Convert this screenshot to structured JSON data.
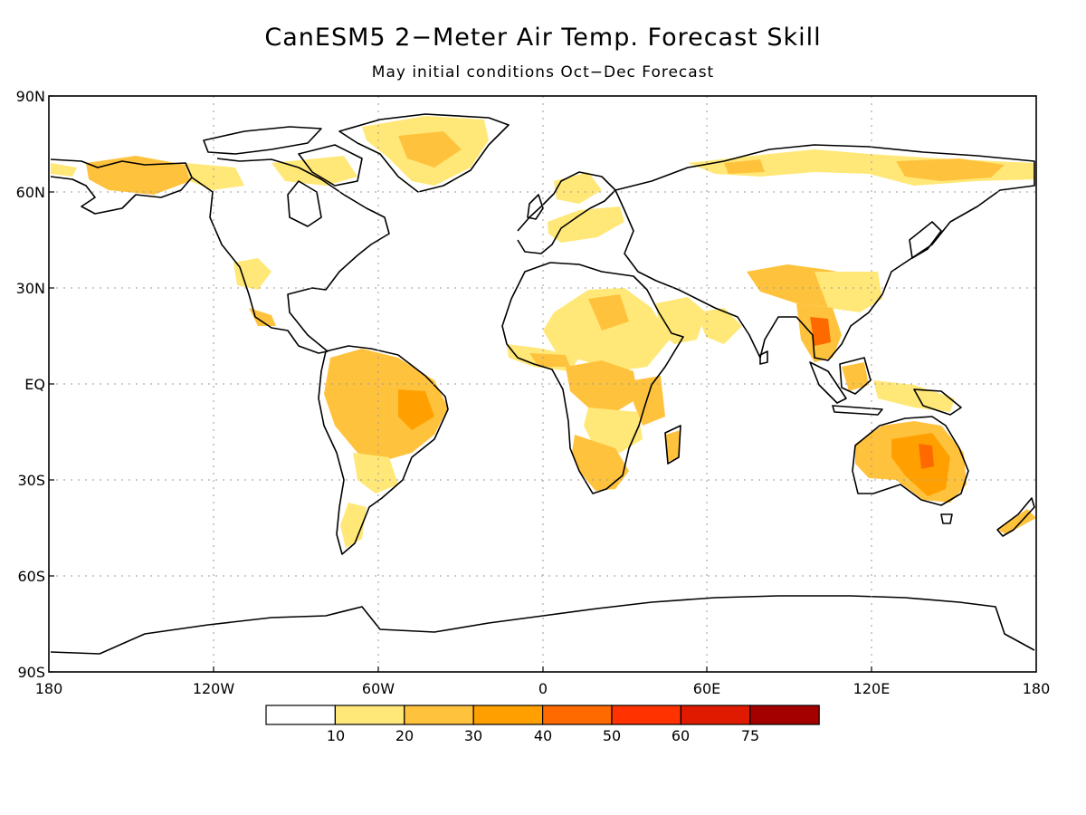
{
  "title": "CanESM5 2−Meter Air Temp. Forecast Skill",
  "subtitle": "May initial conditions  Oct−Dec Forecast",
  "lat_labels": [
    "90N",
    "60N",
    "30N",
    "EQ",
    "30S",
    "60S",
    "90S"
  ],
  "lon_labels": [
    "180",
    "120W",
    "60W",
    "0",
    "60E",
    "120E",
    "180"
  ],
  "colorbar": {
    "colors": [
      "#ffffff",
      "#ffe878",
      "#ffc23d",
      "#ffa000",
      "#ff6a00",
      "#ff3200",
      "#e01a00",
      "#a50000"
    ],
    "labels": [
      "10",
      "20",
      "30",
      "40",
      "50",
      "60",
      "75"
    ]
  },
  "skill_colors": {
    "low": "#ffe878",
    "mid": "#ffc23d",
    "high": "#ffa000",
    "top": "#ff6a00"
  }
}
